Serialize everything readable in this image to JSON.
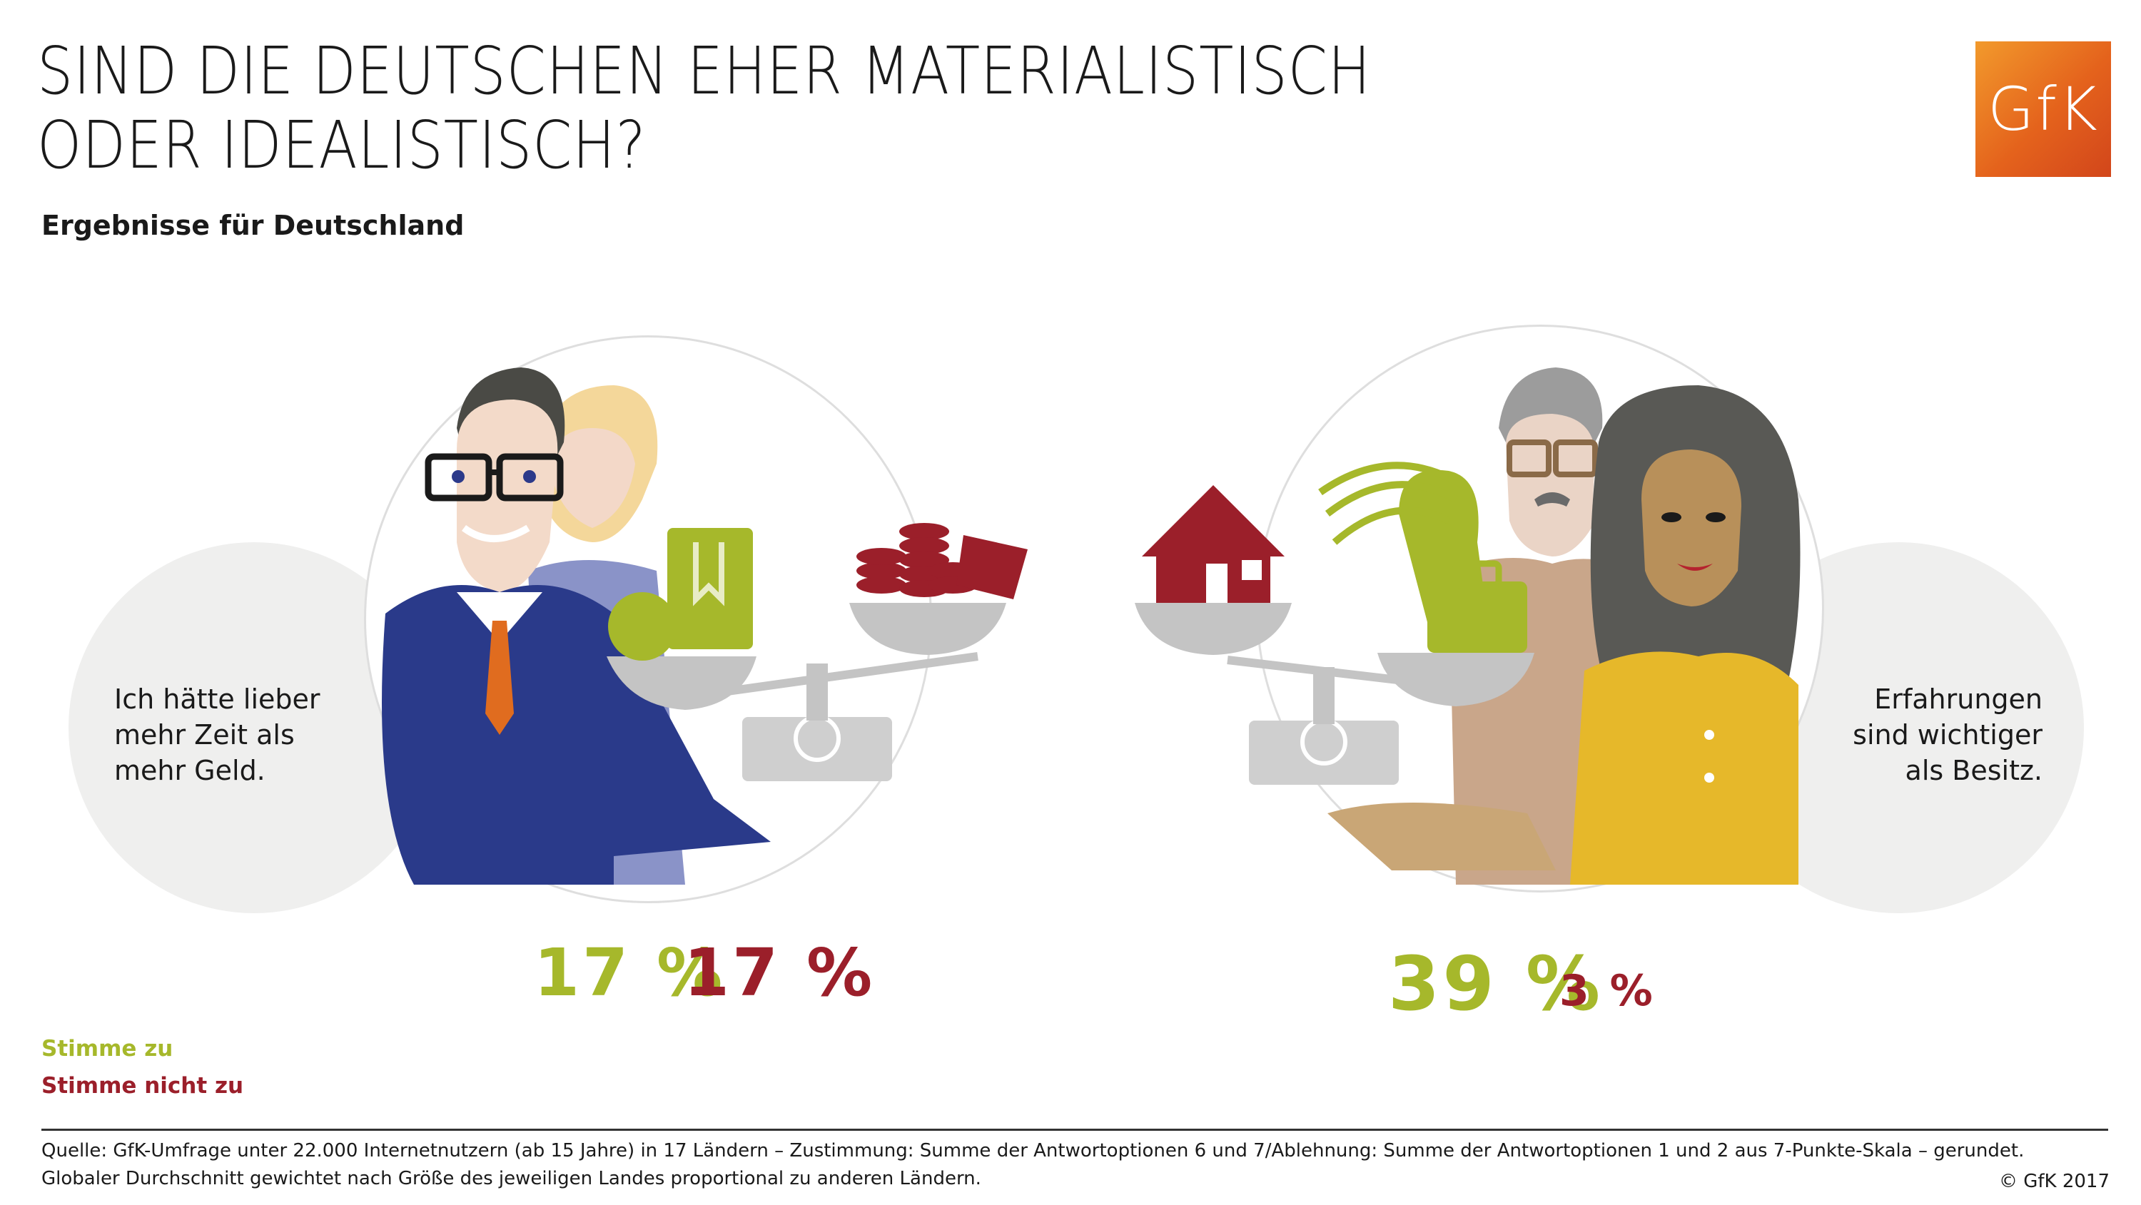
{
  "title": {
    "line1": "SIND DIE DEUTSCHEN EHER MATERIALISTISCH",
    "line2": "ODER IDEALISTISCH?"
  },
  "subtitle": "Ergebnisse für Deutschland",
  "logo": "GfK",
  "colors": {
    "agree": "#a6b82b",
    "disagree": "#9b1f2a",
    "bubble": "#efefee"
  },
  "chart_data": {
    "type": "bar",
    "categories": [
      "Ich hätte lieber mehr Zeit als mehr Geld.",
      "Erfahrungen sind wichtiger als Besitz."
    ],
    "series": [
      {
        "name": "Stimme zu",
        "values": [
          17,
          39
        ]
      },
      {
        "name": "Stimme nicht zu",
        "values": [
          17,
          3
        ]
      }
    ],
    "unit": "%"
  },
  "panels": [
    {
      "statement_lines": [
        "Ich hätte lieber",
        "mehr Zeit als",
        "mehr Geld."
      ],
      "agree_label": "17 %",
      "disagree_label": "17 %"
    },
    {
      "statement_lines": [
        "Erfahrungen",
        "sind wichtiger",
        "als Besitz."
      ],
      "agree_label": "39 %",
      "disagree_label": "3 %"
    }
  ],
  "legend": {
    "agree": "Stimme zu",
    "disagree": "Stimme nicht zu"
  },
  "footer": {
    "line1": "Quelle: GfK-Umfrage unter 22.000 Internetnutzern (ab 15 Jahre) in 17 Ländern – Zustimmung: Summe der Antwortoptionen 6 und 7/Ablehnung: Summe der Antwortoptionen 1 und 2 aus 7-Punkte-Skala – gerundet.",
    "line2": "Globaler Durchschnitt gewichtet nach Größe des jeweiligen Landes proportional zu anderen Ländern.",
    "copyright": "© GfK 2017"
  }
}
